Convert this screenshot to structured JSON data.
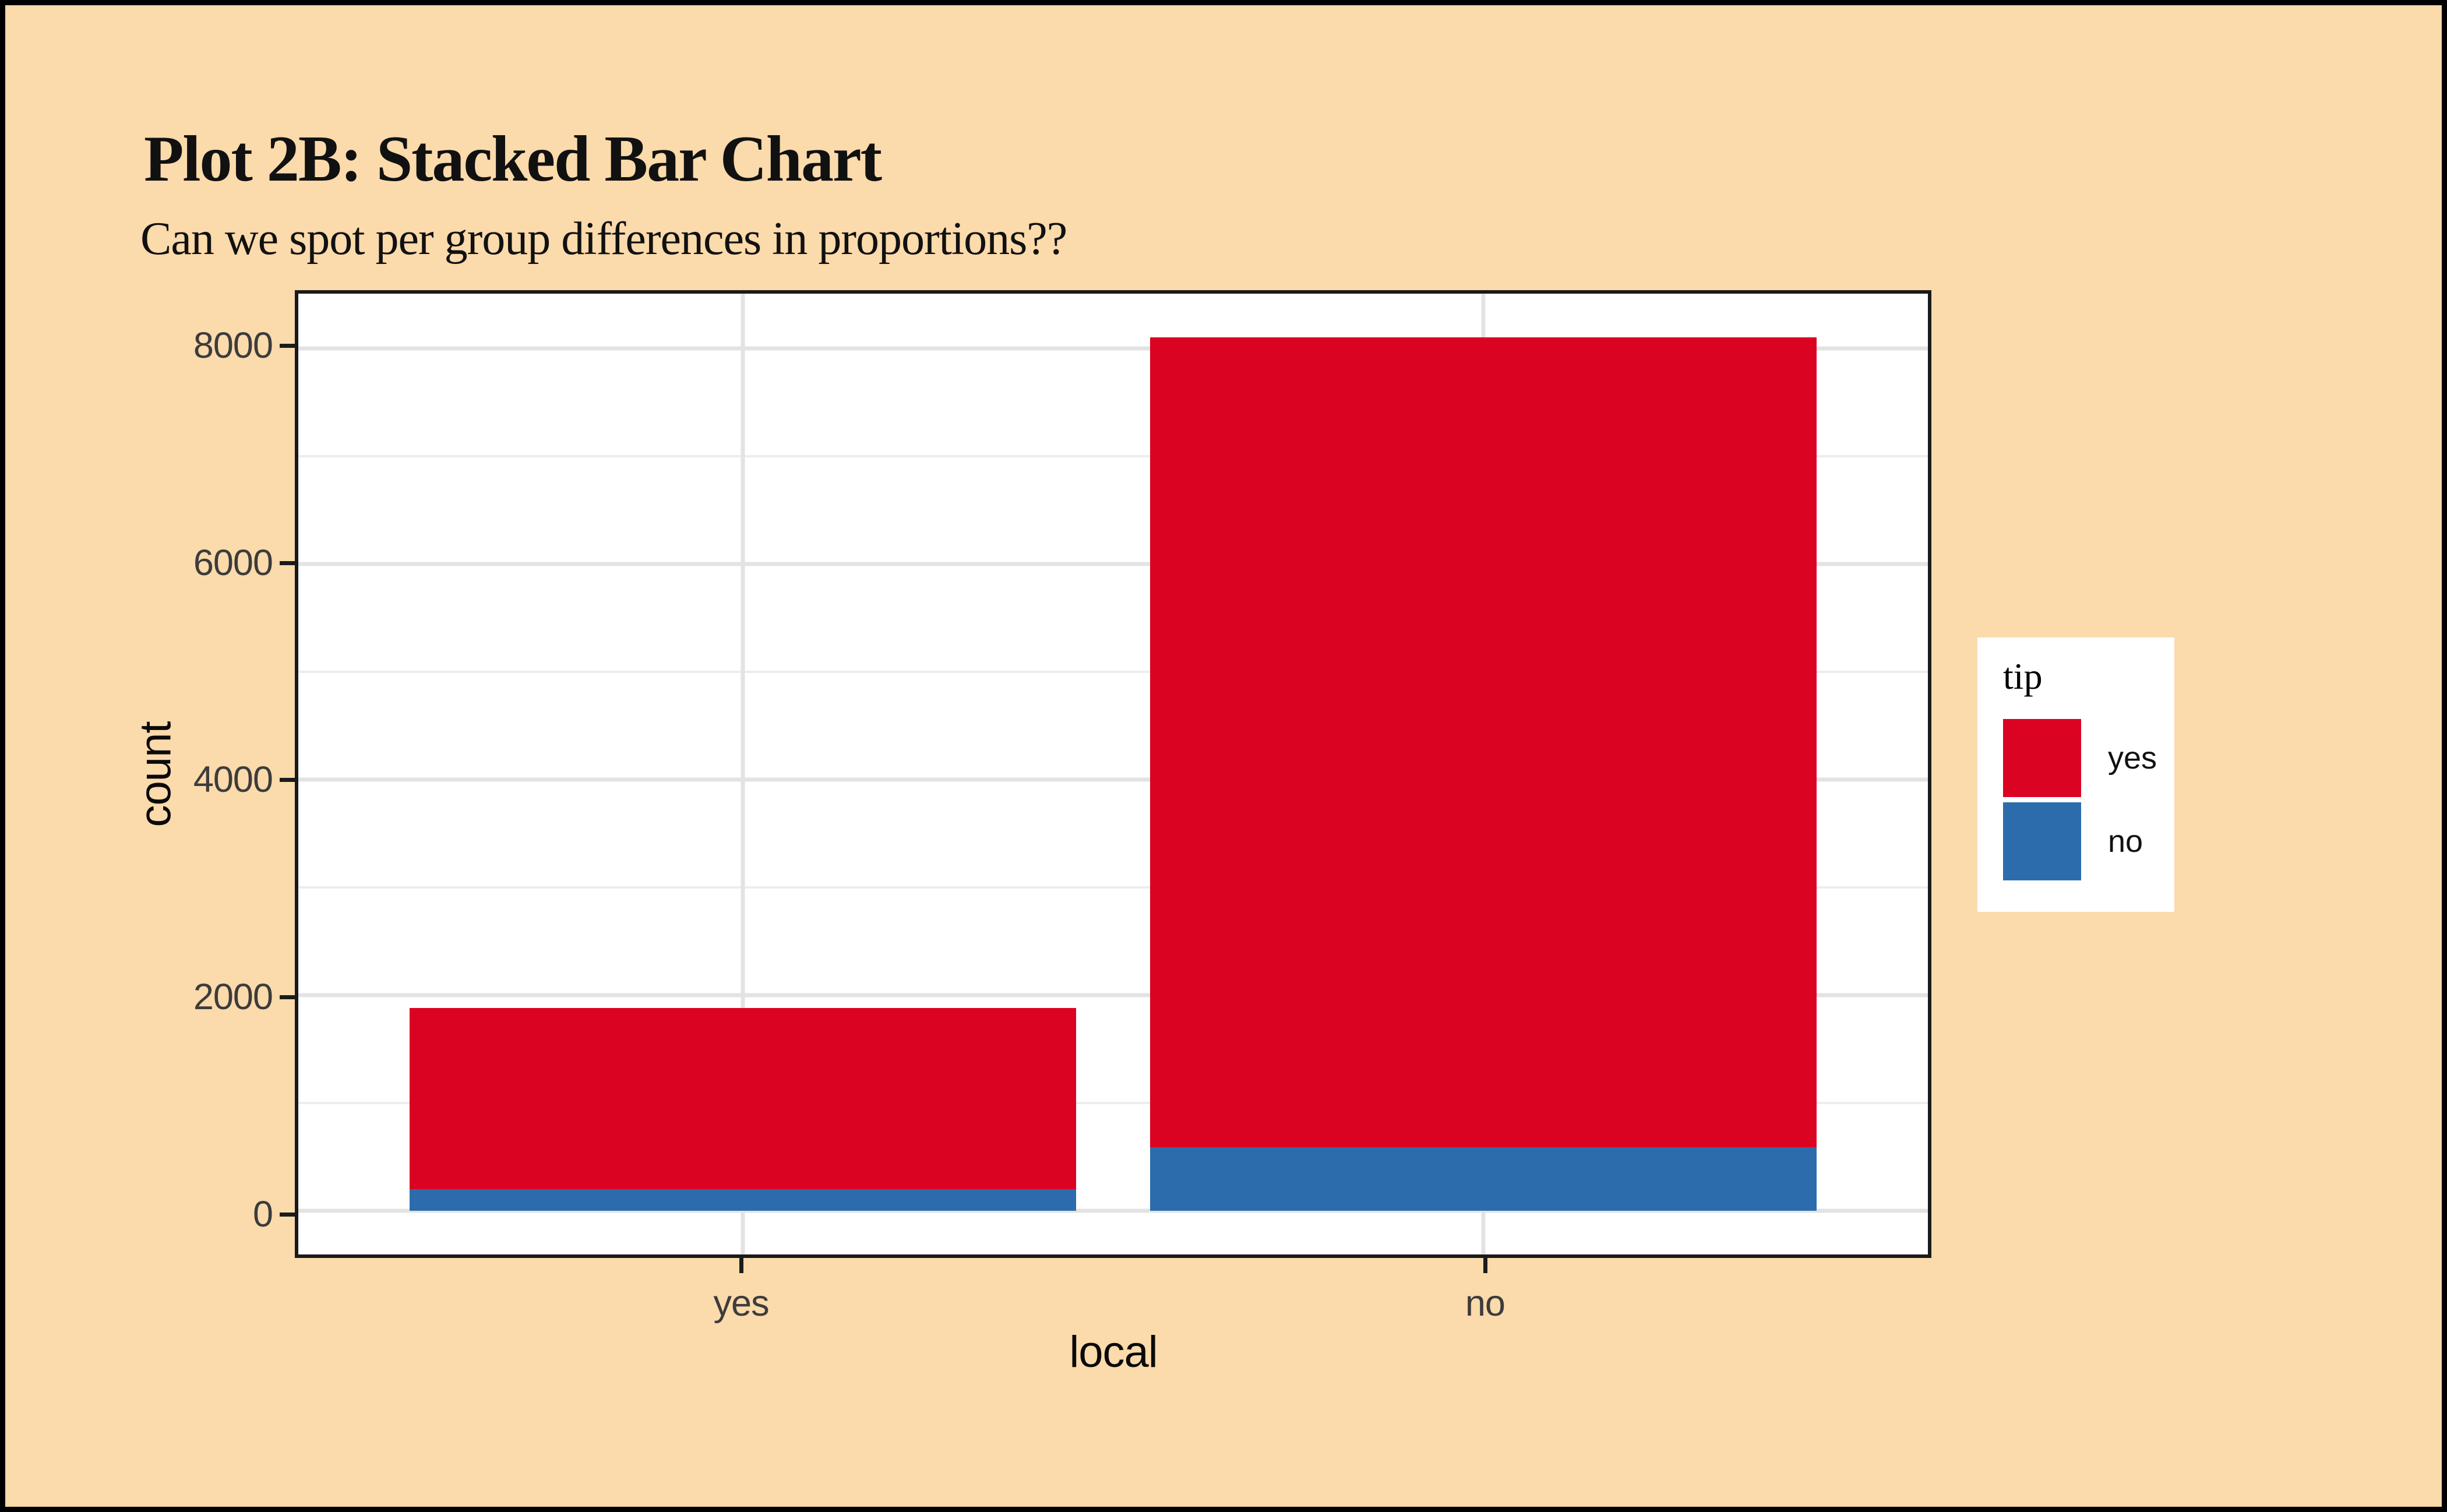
{
  "colors": {
    "background": "#FBDAAB",
    "panel": "#FFFFFF",
    "grid_major": "#E3E3E3",
    "grid_minor": "#EDEDED",
    "axis_text": "#3C3C3C",
    "text": "#111111",
    "frame_border": "#000000",
    "panel_border": "#1A1A1A",
    "red": "#DB0322",
    "blue": "#2C6CAC"
  },
  "chart_data": {
    "type": "bar",
    "stacked": true,
    "title": "Plot 2B: Stacked Bar Chart",
    "subtitle": "Can we spot per group differences in proportions??",
    "xlabel": "local",
    "ylabel": "count",
    "categories": [
      "yes",
      "no"
    ],
    "series": [
      {
        "name": "no",
        "color": "#2C6CAC",
        "values": [
          200,
          590
        ]
      },
      {
        "name": "yes",
        "color": "#DB0322",
        "values": [
          1680,
          7515
        ]
      }
    ],
    "totals": [
      1880,
      8105
    ],
    "y_ticks": [
      0,
      2000,
      4000,
      6000,
      8000
    ],
    "y_minor_ticks": [
      1000,
      3000,
      5000,
      7000
    ],
    "ylim": [
      0,
      8105
    ],
    "panel_ylim": [
      -405,
      8510
    ],
    "bar_width": 0.9,
    "x_expand": 0.6,
    "grid": "horizontal major+minor gridlines, vertical major gridlines at category centers, grid on white panel",
    "legend": {
      "title": "tip",
      "position": "right",
      "entries": [
        {
          "label": "yes",
          "color": "#DB0322"
        },
        {
          "label": "no",
          "color": "#2C6CAC"
        }
      ]
    }
  }
}
